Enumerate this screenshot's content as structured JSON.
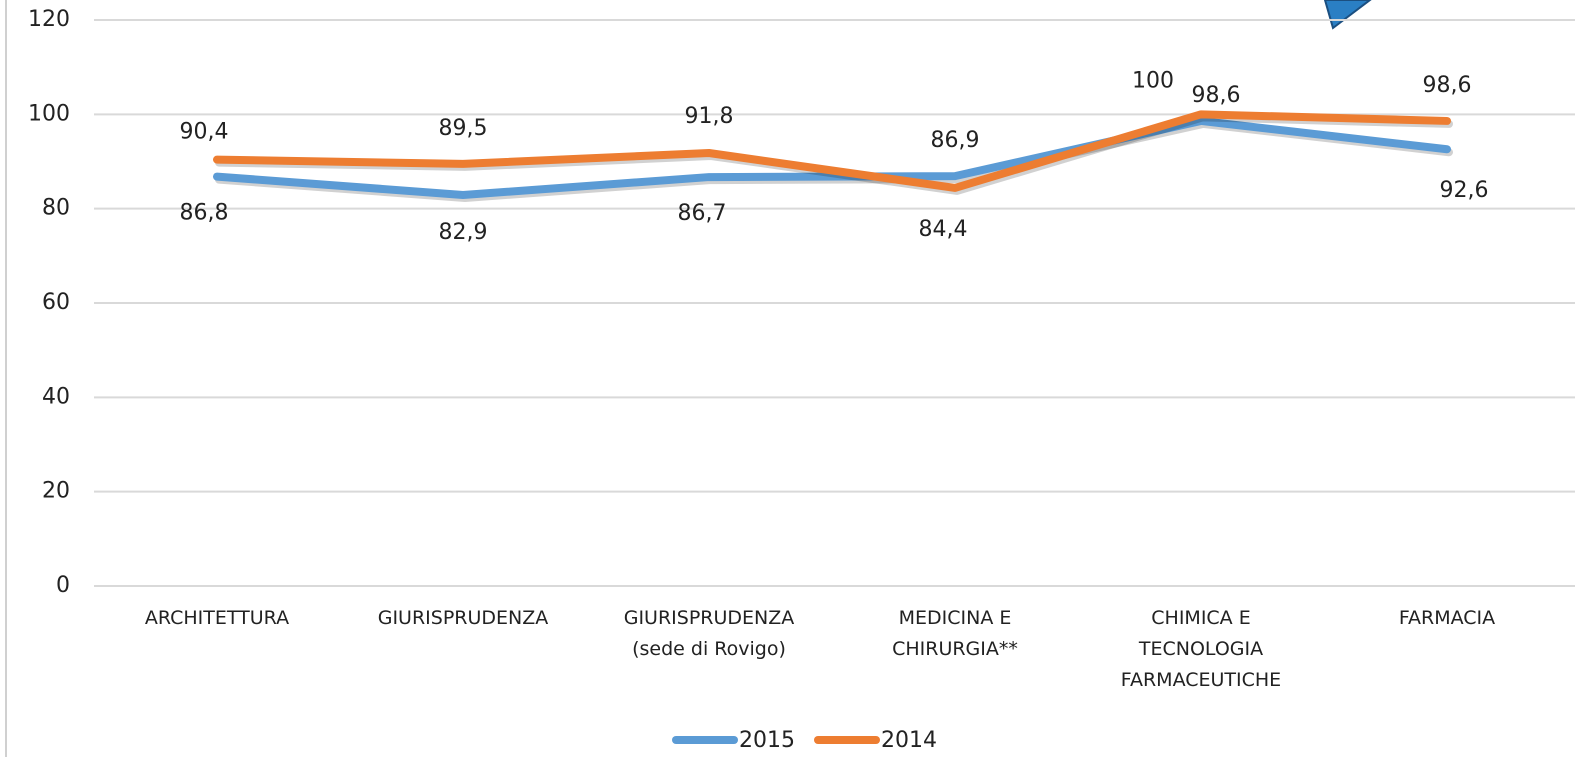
{
  "chart_data": {
    "type": "line",
    "categories": [
      "ARCHITETTURA",
      "GIURISPRUDENZA",
      "GIURISPRUDENZA (sede di Rovigo)",
      "MEDICINA E CHIRURGIA**",
      "CHIMICA E TECNOLOGIA FARMACEUTICHE",
      "FARMACIA"
    ],
    "series": [
      {
        "name": "2015",
        "color": "#5b9bd5",
        "values": [
          86.8,
          82.9,
          86.7,
          86.9,
          98.6,
          92.6
        ],
        "value_labels": [
          "86,8",
          "82,9",
          "86,7",
          "86,9",
          "98,6",
          "92,6"
        ]
      },
      {
        "name": "2014",
        "color": "#ed7d31",
        "values": [
          90.4,
          89.5,
          91.8,
          84.4,
          100,
          98.6
        ],
        "value_labels": [
          "90,4",
          "89,5",
          "91,8",
          "84,4",
          "100",
          "98,6"
        ]
      }
    ],
    "ylim": [
      0,
      120
    ],
    "yticks": [
      0,
      20,
      40,
      60,
      80,
      100,
      120
    ],
    "grid": true,
    "legend": "bottom"
  }
}
